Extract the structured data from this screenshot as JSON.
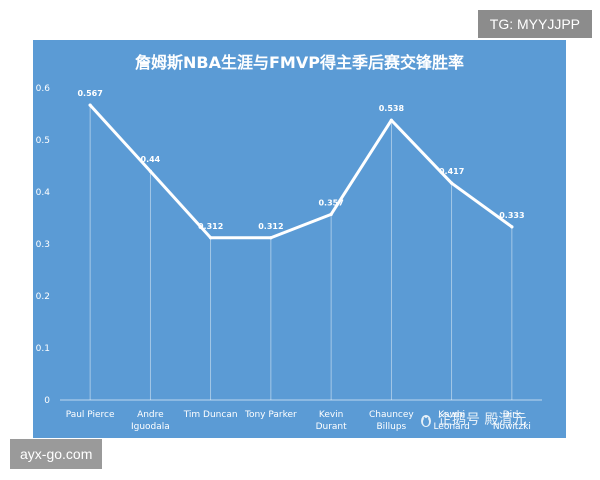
{
  "badges": {
    "telegram": "TG: MYYJJPP",
    "site": "ayx-go.com"
  },
  "watermark": {
    "text": "企鹅号 殿清元",
    "icon": "penguin-icon"
  },
  "colors": {
    "background": "#5b9bd5",
    "line": "#ffffff",
    "text": "#ffffff"
  },
  "chart_data": {
    "type": "line",
    "title": "詹姆斯NBA生涯与FMVP得主季后赛交锋胜率",
    "xlabel": "",
    "ylabel": "",
    "ylim": [
      0,
      0.6
    ],
    "yticks": [
      "0",
      "0.1",
      "0.2",
      "0.3",
      "0.4",
      "0.5",
      "0.6"
    ],
    "categories": [
      [
        "Paul Pierce"
      ],
      [
        "Andre",
        "Iguodala"
      ],
      [
        "Tim Duncan"
      ],
      [
        "Tony Parker"
      ],
      [
        "Kevin",
        "Durant"
      ],
      [
        "Chauncey",
        "Billups"
      ],
      [
        "Kawhi",
        "Leonard"
      ],
      [
        "Dirk",
        "Nowitzki"
      ]
    ],
    "series": [
      {
        "values": [
          0.567,
          0.44,
          0.312,
          0.312,
          0.357,
          0.538,
          0.417,
          0.333
        ],
        "labels": [
          "0.567",
          "0.44",
          "0.312",
          "0.312",
          "0.357",
          "0.538",
          "0.417",
          "0.333"
        ]
      }
    ],
    "grid": false,
    "drop_lines": true,
    "legend": "none"
  }
}
